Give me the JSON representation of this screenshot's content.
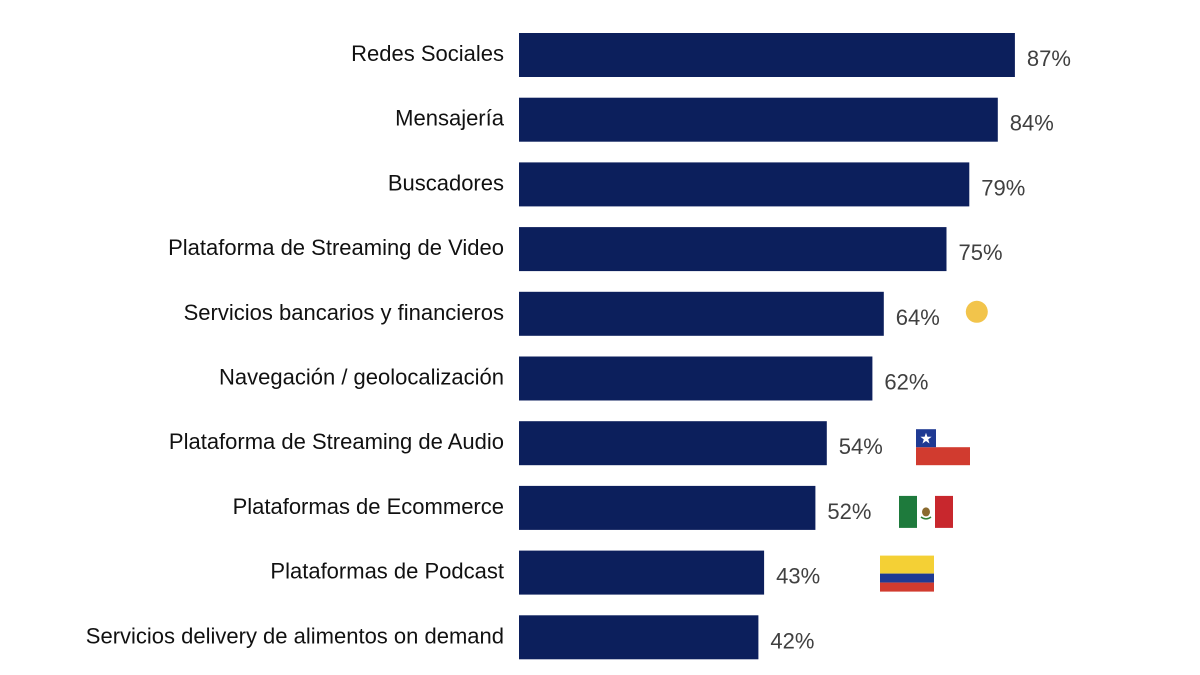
{
  "chart_data": {
    "type": "bar",
    "orientation": "horizontal",
    "categories": [
      "Redes Sociales",
      "Mensajería",
      "Buscadores",
      "Plataforma de Streaming de Video",
      "Servicios bancarios y financieros",
      "Navegación / geolocalización",
      "Plataforma de Streaming de Audio",
      "Plataformas de Ecommerce",
      "Plataformas de Podcast",
      "Servicios delivery de alimentos on demand"
    ],
    "values": [
      87,
      84,
      79,
      75,
      64,
      62,
      54,
      52,
      43,
      42
    ],
    "value_labels": [
      "87%",
      "84%",
      "79%",
      "75%",
      "64%",
      "62%",
      "54%",
      "52%",
      "43%",
      "42%"
    ],
    "unit": "%",
    "xlim": [
      0,
      100
    ],
    "grid": false,
    "bar_color": "#0c1f5c",
    "markers": [
      {
        "row": 4,
        "type": "dot",
        "name": "yellow-dot-marker",
        "color": "#f2c44b"
      },
      {
        "row": 6,
        "type": "flag",
        "name": "chile-flag-icon",
        "colors": [
          "#1f3a93",
          "#ffffff",
          "#d13b2f"
        ]
      },
      {
        "row": 7,
        "type": "flag",
        "name": "mexico-flag-icon",
        "colors": [
          "#1e7a3c",
          "#ffffff",
          "#c8272d"
        ]
      },
      {
        "row": 8,
        "type": "flag",
        "name": "colombia-flag-icon",
        "colors": [
          "#f4d035",
          "#1f3a93",
          "#d13b2f"
        ]
      }
    ]
  }
}
